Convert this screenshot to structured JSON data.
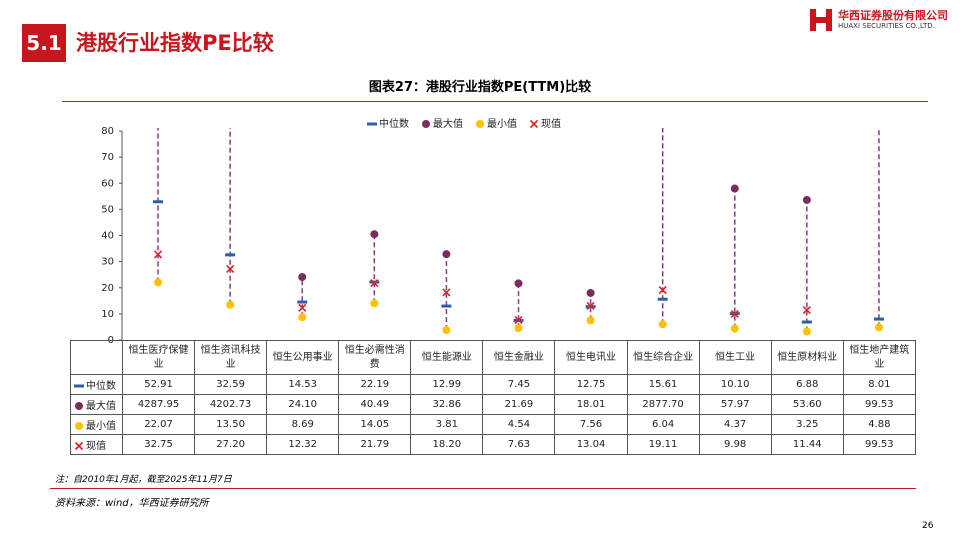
{
  "header": {
    "section": "5.1",
    "title": "港股行业指数PE比较",
    "company": "华西证券股份有限公司",
    "company_en": "HUAXI SECURITIES CO.,LTD."
  },
  "chart_data": {
    "type": "range",
    "title": "图表27：港股行业指数PE(TTM)比较",
    "categories": [
      "恒生医疗保健业",
      "恒生资讯科技业",
      "恒生公用事业",
      "恒生必需性消费",
      "恒生能源业",
      "恒生金融业",
      "恒生电讯业",
      "恒生综合企业",
      "恒生工业",
      "恒生原材料业",
      "恒生地产建筑业"
    ],
    "series": [
      {
        "name": "中位数",
        "color": "#2e5eaa",
        "marker": "dash",
        "values": [
          52.91,
          32.59,
          14.53,
          22.19,
          12.99,
          7.45,
          12.75,
          15.61,
          10.1,
          6.88,
          8.01
        ],
        "value_labels": [
          "52.91",
          "32.59",
          "14.53",
          "22.19",
          "12.99",
          "7.45",
          "12.75",
          "15.61",
          "10.10",
          "6.88",
          "8.01"
        ]
      },
      {
        "name": "最大值",
        "color": "#7b2c5e",
        "marker": "circle",
        "values": [
          4287.95,
          4202.73,
          24.1,
          40.49,
          32.86,
          21.69,
          18.01,
          2877.7,
          57.97,
          53.6,
          99.53
        ],
        "value_labels": [
          "4287.95",
          "4202.73",
          "24.10",
          "40.49",
          "32.86",
          "21.69",
          "18.01",
          "2877.70",
          "57.97",
          "53.60",
          "99.53"
        ]
      },
      {
        "name": "最小值",
        "color": "#ffc000",
        "marker": "circle",
        "values": [
          22.07,
          13.5,
          8.69,
          14.05,
          3.81,
          4.54,
          7.56,
          6.04,
          4.37,
          3.25,
          4.88
        ],
        "value_labels": [
          "22.07",
          "13.50",
          "8.69",
          "14.05",
          "3.81",
          "4.54",
          "7.56",
          "6.04",
          "4.37",
          "3.25",
          "4.88"
        ]
      },
      {
        "name": "现值",
        "color": "#e02020",
        "marker": "x",
        "values": [
          32.75,
          27.2,
          12.32,
          21.79,
          18.2,
          7.63,
          13.04,
          19.11,
          9.98,
          11.44,
          99.53
        ],
        "value_labels": [
          "32.75",
          "27.20",
          "12.32",
          "21.79",
          "18.20",
          "7.63",
          "13.04",
          "19.11",
          "9.98",
          "11.44",
          "99.53"
        ]
      }
    ],
    "range_color": "#8a3a8a",
    "ylim": [
      0,
      80
    ],
    "yticks": [
      0,
      10,
      20,
      30,
      40,
      50,
      60,
      70,
      80
    ],
    "grid": false
  },
  "footer": {
    "note": "注：自2010年1月起，截至2025年11月7日",
    "source": "资料来源：wind，华西证券研究所",
    "page": "26"
  }
}
